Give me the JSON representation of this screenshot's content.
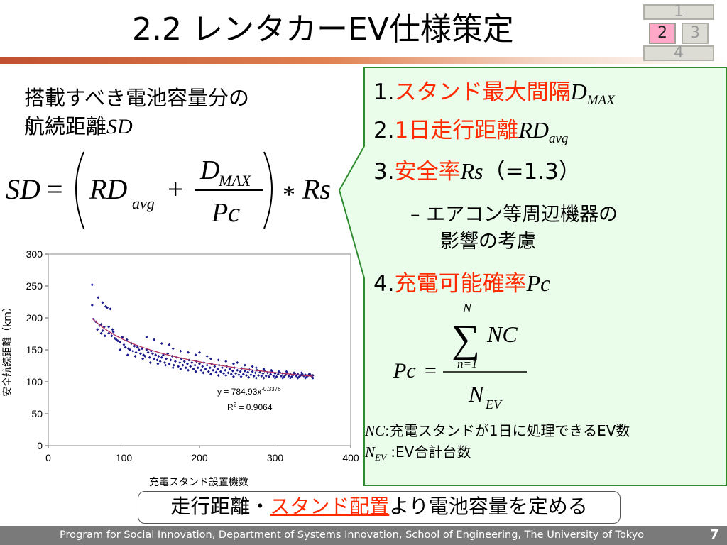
{
  "title": "2.2  レンタカーEV仕様策定",
  "nav": {
    "items": [
      "1",
      "2",
      "3",
      "4"
    ],
    "active": "2"
  },
  "left": {
    "line1": "搭載すべき電池容量分の",
    "line2_jp": "航続距離",
    "line2_abbr": "SD"
  },
  "formula_sd": {
    "lhs": "SD",
    "eq": "=",
    "rd": "RD",
    "rd_sub": "avg",
    "plus": "+",
    "num": "D",
    "num_sub": "MAX",
    "den": "Pc",
    "times": "*",
    "rs": "Rs"
  },
  "items": [
    {
      "num": "1.",
      "label": "スタンド最大間隔",
      "sym": "D",
      "sub": "MAX",
      "tail": ""
    },
    {
      "num": "2.",
      "label": "1日走行距離",
      "sym": "RD",
      "sub": "avg",
      "tail": ""
    },
    {
      "num": "3.",
      "label": "安全率",
      "sym": "Rs",
      "sub": "",
      "tail": "（=1.3）"
    },
    {
      "num": "4.",
      "label": "充電可能確率",
      "sym": "Pc",
      "sub": "",
      "tail": ""
    }
  ],
  "subitem": {
    "dash": "–",
    "line1": "エアコン等周辺機器の",
    "line2": "影響の考慮"
  },
  "formula_pc": {
    "lhs": "Pc",
    "eq": "=",
    "sum_upper": "N",
    "sum_lower": "n=1",
    "num": "NC",
    "den": "N",
    "den_sub": "EV"
  },
  "notes": [
    {
      "sym": "NC",
      "sub": "",
      "text": ":充電スタンドが1日に処理できるEV数"
    },
    {
      "sym": "N",
      "sub": "EV",
      "text": ":EV合計台数"
    }
  ],
  "conclusion": {
    "part1": "走行距離・",
    "part2": "スタンド配置",
    "part3": "より電池容量を定める"
  },
  "footer": {
    "text": "Program for Social Innovation, Department of Systems Innovation, School of Engineering, The University of Tokyo",
    "page": "7"
  },
  "colors": {
    "accent_red": "#ff2a00",
    "panel_bg": "#eafcea",
    "panel_border": "#2e8b2e",
    "points": "#1a1a8c",
    "trend": "#b03060"
  },
  "chart_data": {
    "type": "scatter",
    "xlabel": "充電スタンド設置機数",
    "ylabel": "安全航続距離（km）",
    "xlim": [
      0,
      400
    ],
    "ylim": [
      0,
      300
    ],
    "xticks": [
      "0",
      "100",
      "200",
      "300",
      "400"
    ],
    "yticks": [
      "0",
      "50",
      "100",
      "150",
      "200",
      "250",
      "300"
    ],
    "grid": false,
    "annotation": {
      "eq_base": "y = 784.93x",
      "eq_exp": "-0.3376",
      "r2_base": "R",
      "r2_exp": "2",
      "r2_val": " = 0.9064"
    },
    "trendline": {
      "type": "power",
      "a": 784.93,
      "b": -0.3376,
      "x_range": [
        58,
        350
      ]
    },
    "points": [
      [
        58,
        252
      ],
      [
        58,
        220
      ],
      [
        60,
        198
      ],
      [
        63,
        194
      ],
      [
        66,
        232
      ],
      [
        68,
        188
      ],
      [
        70,
        176
      ],
      [
        72,
        224
      ],
      [
        72,
        180
      ],
      [
        75,
        172
      ],
      [
        76,
        218
      ],
      [
        78,
        216
      ],
      [
        80,
        176
      ],
      [
        82,
        214
      ],
      [
        84,
        172
      ],
      [
        86,
        178
      ],
      [
        88,
        168
      ],
      [
        90,
        166
      ],
      [
        92,
        164
      ],
      [
        95,
        162
      ],
      [
        98,
        170
      ],
      [
        100,
        158
      ],
      [
        102,
        154
      ],
      [
        104,
        166
      ],
      [
        106,
        152
      ],
      [
        108,
        150
      ],
      [
        110,
        160
      ],
      [
        112,
        148
      ],
      [
        114,
        156
      ],
      [
        116,
        146
      ],
      [
        118,
        154
      ],
      [
        120,
        150
      ],
      [
        122,
        144
      ],
      [
        124,
        152
      ],
      [
        126,
        142
      ],
      [
        128,
        140
      ],
      [
        130,
        150
      ],
      [
        132,
        146
      ],
      [
        134,
        138
      ],
      [
        136,
        148
      ],
      [
        138,
        144
      ],
      [
        140,
        136
      ],
      [
        142,
        142
      ],
      [
        144,
        134
      ],
      [
        146,
        140
      ],
      [
        148,
        132
      ],
      [
        150,
        138
      ],
      [
        152,
        142
      ],
      [
        154,
        130
      ],
      [
        156,
        136
      ],
      [
        158,
        144
      ],
      [
        160,
        128
      ],
      [
        162,
        134
      ],
      [
        164,
        140
      ],
      [
        166,
        126
      ],
      [
        168,
        132
      ],
      [
        170,
        138
      ],
      [
        172,
        124
      ],
      [
        174,
        130
      ],
      [
        176,
        136
      ],
      [
        178,
        126
      ],
      [
        180,
        132
      ],
      [
        182,
        122
      ],
      [
        184,
        128
      ],
      [
        186,
        134
      ],
      [
        188,
        124
      ],
      [
        190,
        130
      ],
      [
        192,
        120
      ],
      [
        194,
        126
      ],
      [
        196,
        132
      ],
      [
        198,
        122
      ],
      [
        200,
        128
      ],
      [
        202,
        118
      ],
      [
        204,
        124
      ],
      [
        206,
        130
      ],
      [
        208,
        120
      ],
      [
        210,
        126
      ],
      [
        212,
        116
      ],
      [
        214,
        122
      ],
      [
        216,
        128
      ],
      [
        218,
        118
      ],
      [
        220,
        124
      ],
      [
        222,
        115
      ],
      [
        224,
        120
      ],
      [
        226,
        126
      ],
      [
        228,
        116
      ],
      [
        230,
        122
      ],
      [
        232,
        113
      ],
      [
        234,
        118
      ],
      [
        236,
        124
      ],
      [
        238,
        114
      ],
      [
        240,
        120
      ],
      [
        242,
        112
      ],
      [
        244,
        117
      ],
      [
        246,
        122
      ],
      [
        248,
        113
      ],
      [
        250,
        118
      ],
      [
        252,
        111
      ],
      [
        254,
        116
      ],
      [
        256,
        121
      ],
      [
        258,
        112
      ],
      [
        260,
        117
      ],
      [
        262,
        110
      ],
      [
        264,
        115
      ],
      [
        266,
        119
      ],
      [
        268,
        111
      ],
      [
        270,
        116
      ],
      [
        272,
        109
      ],
      [
        274,
        114
      ],
      [
        276,
        118
      ],
      [
        278,
        110
      ],
      [
        280,
        115
      ],
      [
        282,
        109
      ],
      [
        284,
        113
      ],
      [
        286,
        117
      ],
      [
        288,
        109
      ],
      [
        290,
        114
      ],
      [
        292,
        108
      ],
      [
        294,
        112
      ],
      [
        296,
        116
      ],
      [
        298,
        109
      ],
      [
        300,
        113
      ],
      [
        302,
        108
      ],
      [
        304,
        112
      ],
      [
        306,
        115
      ],
      [
        308,
        109
      ],
      [
        310,
        113
      ],
      [
        312,
        108
      ],
      [
        314,
        111
      ],
      [
        316,
        114
      ],
      [
        318,
        109
      ],
      [
        320,
        112
      ],
      [
        322,
        108
      ],
      [
        324,
        111
      ],
      [
        326,
        113
      ],
      [
        328,
        109
      ],
      [
        330,
        112
      ],
      [
        332,
        108
      ],
      [
        334,
        110
      ],
      [
        336,
        112
      ],
      [
        338,
        109
      ],
      [
        340,
        111
      ],
      [
        342,
        108
      ],
      [
        344,
        110
      ],
      [
        346,
        112
      ],
      [
        348,
        109
      ],
      [
        350,
        110
      ],
      [
        130,
        170
      ],
      [
        140,
        166
      ],
      [
        150,
        160
      ],
      [
        160,
        158
      ],
      [
        165,
        152
      ],
      [
        175,
        148
      ],
      [
        185,
        146
      ],
      [
        195,
        142
      ],
      [
        200,
        146
      ],
      [
        210,
        140
      ],
      [
        215,
        136
      ],
      [
        225,
        134
      ],
      [
        235,
        132
      ],
      [
        245,
        128
      ],
      [
        250,
        130
      ],
      [
        260,
        126
      ],
      [
        270,
        124
      ],
      [
        275,
        122
      ],
      [
        285,
        120
      ],
      [
        295,
        118
      ],
      [
        305,
        116
      ],
      [
        315,
        116
      ],
      [
        325,
        114
      ],
      [
        335,
        114
      ],
      [
        345,
        112
      ],
      [
        65,
        182
      ],
      [
        70,
        190
      ],
      [
        74,
        186
      ],
      [
        80,
        186
      ],
      [
        85,
        182
      ],
      [
        95,
        150
      ],
      [
        105,
        142
      ],
      [
        115,
        140
      ],
      [
        125,
        136
      ],
      [
        135,
        130
      ],
      [
        145,
        128
      ],
      [
        155,
        126
      ],
      [
        165,
        122
      ],
      [
        175,
        120
      ],
      [
        185,
        118
      ],
      [
        195,
        116
      ],
      [
        205,
        114
      ],
      [
        215,
        112
      ],
      [
        225,
        110
      ],
      [
        235,
        110
      ],
      [
        245,
        108
      ],
      [
        255,
        108
      ],
      [
        265,
        107
      ],
      [
        275,
        106
      ],
      [
        285,
        106
      ],
      [
        300,
        106
      ],
      [
        310,
        106
      ],
      [
        320,
        106
      ],
      [
        330,
        106
      ],
      [
        340,
        106
      ],
      [
        350,
        106
      ]
    ]
  }
}
